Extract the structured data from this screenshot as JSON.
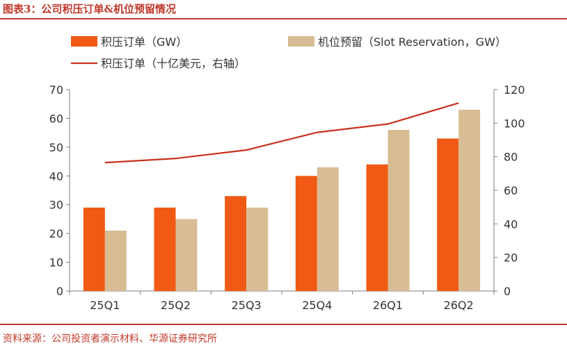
{
  "header": {
    "title": "图表3：公司积压订单&机位预留情况"
  },
  "footer": {
    "source": "资料来源：公司投资者演示材料、华源证券研究所"
  },
  "colors": {
    "accent": "#c0392b",
    "backlog_bar": "#f05a14",
    "reservation_bar": "#d8bc94",
    "line": "#c8321e",
    "axis": "#7f7f7f",
    "text": "#333333"
  },
  "chart_data": {
    "type": "bar",
    "categories": [
      "25Q1",
      "25Q2",
      "25Q3",
      "25Q4",
      "26Q1",
      "26Q2"
    ],
    "series": [
      {
        "name": "积压订单（GW）",
        "kind": "bar",
        "axis": "left",
        "values": [
          29,
          29,
          33,
          40,
          44,
          53
        ]
      },
      {
        "name": "机位预留（Slot Reservation，GW）",
        "kind": "bar",
        "axis": "left",
        "values": [
          21,
          25,
          29,
          43,
          56,
          63
        ]
      },
      {
        "name": "积压订单（十亿美元，右轴）",
        "kind": "line",
        "axis": "right",
        "values": [
          76.5,
          79,
          84,
          94.5,
          99.5,
          112
        ]
      }
    ],
    "yleft": {
      "min": 0,
      "max": 70,
      "ticks": [
        "0",
        "10",
        "20",
        "30",
        "40",
        "50",
        "60",
        "70"
      ]
    },
    "yright": {
      "min": 0,
      "max": 120,
      "ticks": [
        "0",
        "20",
        "40",
        "60",
        "80",
        "100",
        "120"
      ]
    },
    "grid": false,
    "legend": "top"
  }
}
